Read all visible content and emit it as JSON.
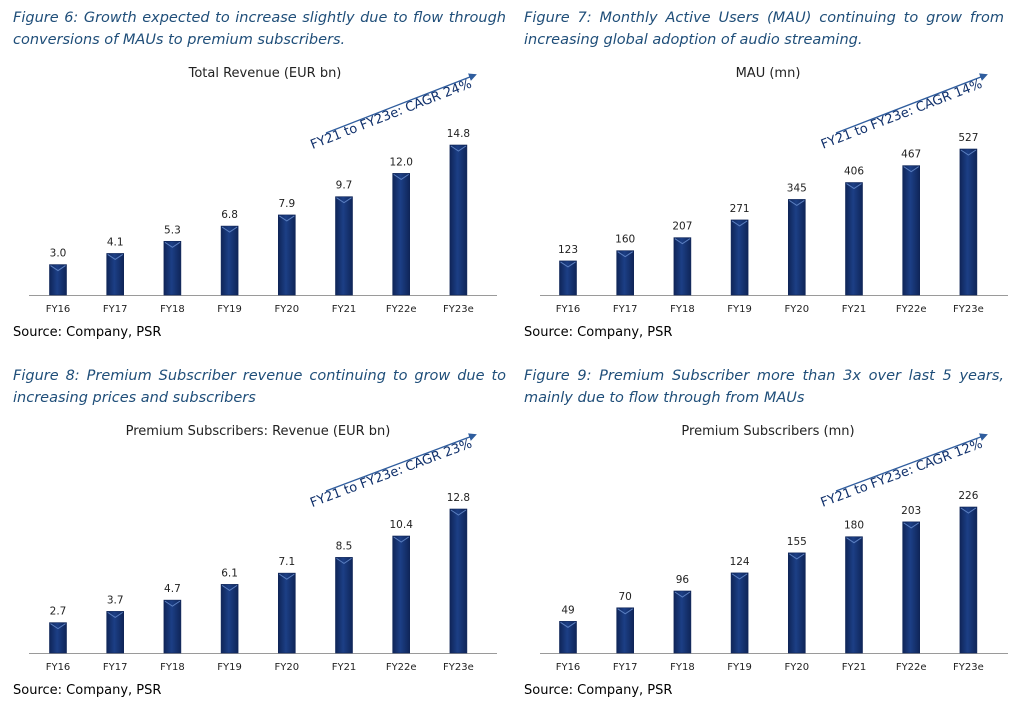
{
  "colors": {
    "caption": "#1f4e79",
    "bar": "#1c3f86",
    "bar_dark": "#0f2558",
    "arrow": "#2f5d9e"
  },
  "chart_data": [
    {
      "figure": "Figure 6: Growth expected to increase slightly due to flow through conversions of MAUs to premium subscribers.",
      "type": "bar",
      "title": "Total Revenue (EUR bn)",
      "categories": [
        "FY16",
        "FY17",
        "FY18",
        "FY19",
        "FY20",
        "FY21",
        "FY22e",
        "FY23e"
      ],
      "values": [
        3.0,
        4.1,
        5.3,
        6.8,
        7.9,
        9.7,
        12.0,
        14.8
      ],
      "labels": [
        "3.0",
        "4.1",
        "5.3",
        "6.8",
        "7.9",
        "9.7",
        "12.0",
        "14.8"
      ],
      "ylim": [
        0,
        14.8
      ],
      "annotation": "FY21 to FY23e: CAGR 24%",
      "source": "Source: Company, PSR"
    },
    {
      "figure": "Figure 7: Monthly Active Users (MAU) continuing to grow from increasing global adoption of audio streaming.",
      "type": "bar",
      "title": "MAU (mn)",
      "categories": [
        "FY16",
        "FY17",
        "FY18",
        "FY19",
        "FY20",
        "FY21",
        "FY22e",
        "FY23e"
      ],
      "values": [
        123,
        160,
        207,
        271,
        345,
        406,
        467,
        527
      ],
      "labels": [
        "123",
        "160",
        "207",
        "271",
        "345",
        "406",
        "467",
        "527"
      ],
      "ylim": [
        0,
        527
      ],
      "annotation": "FY21 to FY23e: CAGR 14%",
      "source": "Source: Company, PSR"
    },
    {
      "figure": "Figure 8: Premium Subscriber revenue continuing to grow due to increasing prices and subscribers",
      "type": "bar",
      "title": "Premium Subscribers: Revenue (EUR bn)",
      "categories": [
        "FY16",
        "FY17",
        "FY18",
        "FY19",
        "FY20",
        "FY21",
        "FY22e",
        "FY23e"
      ],
      "values": [
        2.7,
        3.7,
        4.7,
        6.1,
        7.1,
        8.5,
        10.4,
        12.8
      ],
      "labels": [
        "2.7",
        "3.7",
        "4.7",
        "6.1",
        "7.1",
        "8.5",
        "10.4",
        "12.8"
      ],
      "ylim": [
        0,
        12.8
      ],
      "annotation": "FY21 to FY23e: CAGR 23%",
      "source": "Source: Company, PSR"
    },
    {
      "figure": "Figure 9: Premium Subscriber more than 3x over last 5 years, mainly due to flow through from MAUs",
      "type": "bar",
      "title": "Premium Subscribers (mn)",
      "categories": [
        "FY16",
        "FY17",
        "FY18",
        "FY19",
        "FY20",
        "FY21",
        "FY22e",
        "FY23e"
      ],
      "values": [
        49,
        70,
        96,
        124,
        155,
        180,
        203,
        226
      ],
      "labels": [
        "49",
        "70",
        "96",
        "124",
        "155",
        "180",
        "203",
        "226"
      ],
      "ylim": [
        0,
        226
      ],
      "annotation": "FY21 to FY23e: CAGR 12%",
      "source": "Source: Company, PSR"
    }
  ]
}
